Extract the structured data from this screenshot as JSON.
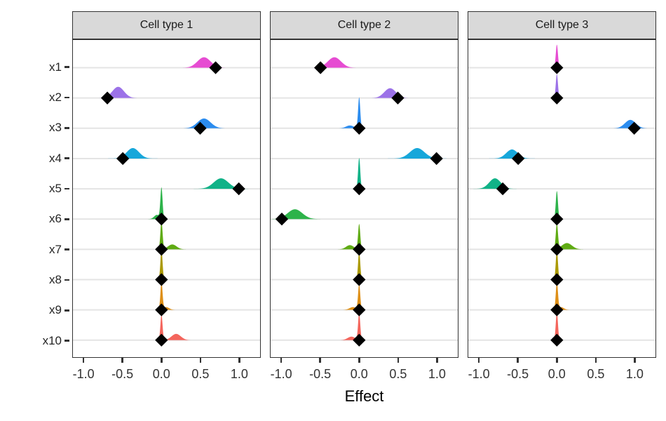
{
  "figure": {
    "background": "#ffffff"
  },
  "style": {
    "strip_bg": "#d9d9d9",
    "strip_border": "#333333",
    "panel_border": "#333333",
    "grid_color": "#e4e4e4",
    "tick_color": "#333333",
    "axis_text_color": "#333333",
    "diamond_color": "#000000"
  },
  "chart_data": {
    "type": "area",
    "subtype": "faceted-density-ridgeline-with-point-estimates",
    "x_label": "Effect",
    "x_ticks": [
      -1.0,
      -0.5,
      0.0,
      0.5,
      1.0
    ],
    "x_tick_labels": [
      "-1.0",
      "-0.5",
      "0.0",
      "0.5",
      "1.0"
    ],
    "x_range_shown": [
      -1.145,
      1.275
    ],
    "grid": "horizontal-only",
    "legend": "none",
    "variables": [
      "x1",
      "x2",
      "x3",
      "x4",
      "x5",
      "x6",
      "x7",
      "x8",
      "x9",
      "x10"
    ],
    "colors": {
      "x1": "#e64cd2",
      "x2": "#9c72e8",
      "x3": "#2b8cef",
      "x4": "#17a7da",
      "x5": "#10b287",
      "x6": "#2db34a",
      "x7": "#5fab13",
      "x8": "#ab9a05",
      "x9": "#de8f17",
      "x10": "#f4655c"
    },
    "facets": [
      {
        "title": "Cell type 1",
        "rows": [
          {
            "var": "x1",
            "point": 0.7,
            "density": [
              {
                "mean": 0.55,
                "sd": 0.085,
                "peak": 15
              }
            ]
          },
          {
            "var": "x2",
            "point": -0.7,
            "density": [
              {
                "mean": -0.56,
                "sd": 0.075,
                "peak": 16
              }
            ]
          },
          {
            "var": "x3",
            "point": 0.5,
            "density": [
              {
                "mean": 0.55,
                "sd": 0.085,
                "peak": 14
              }
            ]
          },
          {
            "var": "x4",
            "point": -0.5,
            "density": [
              {
                "mean": -0.37,
                "sd": 0.08,
                "peak": 15
              }
            ]
          },
          {
            "var": "x5",
            "point": 1.0,
            "density": [
              {
                "mean": 0.77,
                "sd": 0.095,
                "peak": 15
              }
            ]
          },
          {
            "var": "x6",
            "point": 0.0,
            "density": [
              {
                "mean": 0.0,
                "sd": 0.014,
                "peak": 44
              },
              {
                "mean": -0.06,
                "sd": 0.035,
                "peak": 6
              }
            ]
          },
          {
            "var": "x7",
            "point": 0.0,
            "density": [
              {
                "mean": 0.0,
                "sd": 0.014,
                "peak": 40
              },
              {
                "mean": 0.14,
                "sd": 0.055,
                "peak": 7
              }
            ]
          },
          {
            "var": "x8",
            "point": 0.0,
            "density": [
              {
                "mean": 0.0,
                "sd": 0.014,
                "peak": 42
              }
            ]
          },
          {
            "var": "x9",
            "point": 0.0,
            "density": [
              {
                "mean": 0.0,
                "sd": 0.014,
                "peak": 38
              },
              {
                "mean": 0.06,
                "sd": 0.04,
                "peak": 4
              }
            ]
          },
          {
            "var": "x10",
            "point": 0.0,
            "density": [
              {
                "mean": 0.0,
                "sd": 0.014,
                "peak": 36
              },
              {
                "mean": 0.19,
                "sd": 0.06,
                "peak": 9
              }
            ]
          }
        ]
      },
      {
        "title": "Cell type 2",
        "rows": [
          {
            "var": "x1",
            "point": -0.5,
            "density": [
              {
                "mean": -0.32,
                "sd": 0.085,
                "peak": 15
              }
            ]
          },
          {
            "var": "x2",
            "point": 0.5,
            "density": [
              {
                "mean": 0.4,
                "sd": 0.075,
                "peak": 14
              }
            ]
          },
          {
            "var": "x3",
            "point": 0.0,
            "density": [
              {
                "mean": 0.0,
                "sd": 0.014,
                "peak": 44
              },
              {
                "mean": -0.12,
                "sd": 0.05,
                "peak": 4
              }
            ]
          },
          {
            "var": "x4",
            "point": 1.0,
            "density": [
              {
                "mean": 0.75,
                "sd": 0.095,
                "peak": 15
              }
            ]
          },
          {
            "var": "x5",
            "point": 0.0,
            "density": [
              {
                "mean": 0.0,
                "sd": 0.014,
                "peak": 44
              }
            ]
          },
          {
            "var": "x6",
            "point": -1.0,
            "density": [
              {
                "mean": -0.83,
                "sd": 0.095,
                "peak": 14
              }
            ]
          },
          {
            "var": "x7",
            "point": 0.0,
            "density": [
              {
                "mean": 0.0,
                "sd": 0.014,
                "peak": 36
              },
              {
                "mean": -0.12,
                "sd": 0.05,
                "peak": 6
              }
            ]
          },
          {
            "var": "x8",
            "point": 0.0,
            "density": [
              {
                "mean": 0.0,
                "sd": 0.014,
                "peak": 40
              }
            ]
          },
          {
            "var": "x9",
            "point": 0.0,
            "density": [
              {
                "mean": 0.0,
                "sd": 0.014,
                "peak": 36
              },
              {
                "mean": -0.08,
                "sd": 0.045,
                "peak": 4
              }
            ]
          },
          {
            "var": "x10",
            "point": 0.0,
            "density": [
              {
                "mean": 0.0,
                "sd": 0.014,
                "peak": 38
              },
              {
                "mean": -0.1,
                "sd": 0.05,
                "peak": 5
              }
            ]
          }
        ]
      },
      {
        "title": "Cell type 3",
        "rows": [
          {
            "var": "x1",
            "point": 0.0,
            "density": [
              {
                "mean": 0.0,
                "sd": 0.014,
                "peak": 33
              }
            ]
          },
          {
            "var": "x2",
            "point": 0.0,
            "density": [
              {
                "mean": 0.0,
                "sd": 0.014,
                "peak": 34
              }
            ]
          },
          {
            "var": "x3",
            "point": 1.0,
            "density": [
              {
                "mean": 0.95,
                "sd": 0.07,
                "peak": 12
              }
            ]
          },
          {
            "var": "x4",
            "point": -0.5,
            "density": [
              {
                "mean": -0.58,
                "sd": 0.075,
                "peak": 13
              }
            ]
          },
          {
            "var": "x5",
            "point": -0.7,
            "density": [
              {
                "mean": -0.8,
                "sd": 0.075,
                "peak": 15
              }
            ]
          },
          {
            "var": "x6",
            "point": 0.0,
            "density": [
              {
                "mean": 0.0,
                "sd": 0.014,
                "peak": 40
              }
            ]
          },
          {
            "var": "x7",
            "point": 0.0,
            "density": [
              {
                "mean": 0.0,
                "sd": 0.014,
                "peak": 36
              },
              {
                "mean": 0.13,
                "sd": 0.065,
                "peak": 9
              }
            ]
          },
          {
            "var": "x8",
            "point": 0.0,
            "density": [
              {
                "mean": 0.0,
                "sd": 0.014,
                "peak": 42
              }
            ]
          },
          {
            "var": "x9",
            "point": 0.0,
            "density": [
              {
                "mean": 0.0,
                "sd": 0.014,
                "peak": 38
              },
              {
                "mean": 0.05,
                "sd": 0.04,
                "peak": 4
              }
            ]
          },
          {
            "var": "x10",
            "point": 0.0,
            "density": [
              {
                "mean": 0.0,
                "sd": 0.014,
                "peak": 40
              }
            ]
          }
        ]
      }
    ]
  }
}
